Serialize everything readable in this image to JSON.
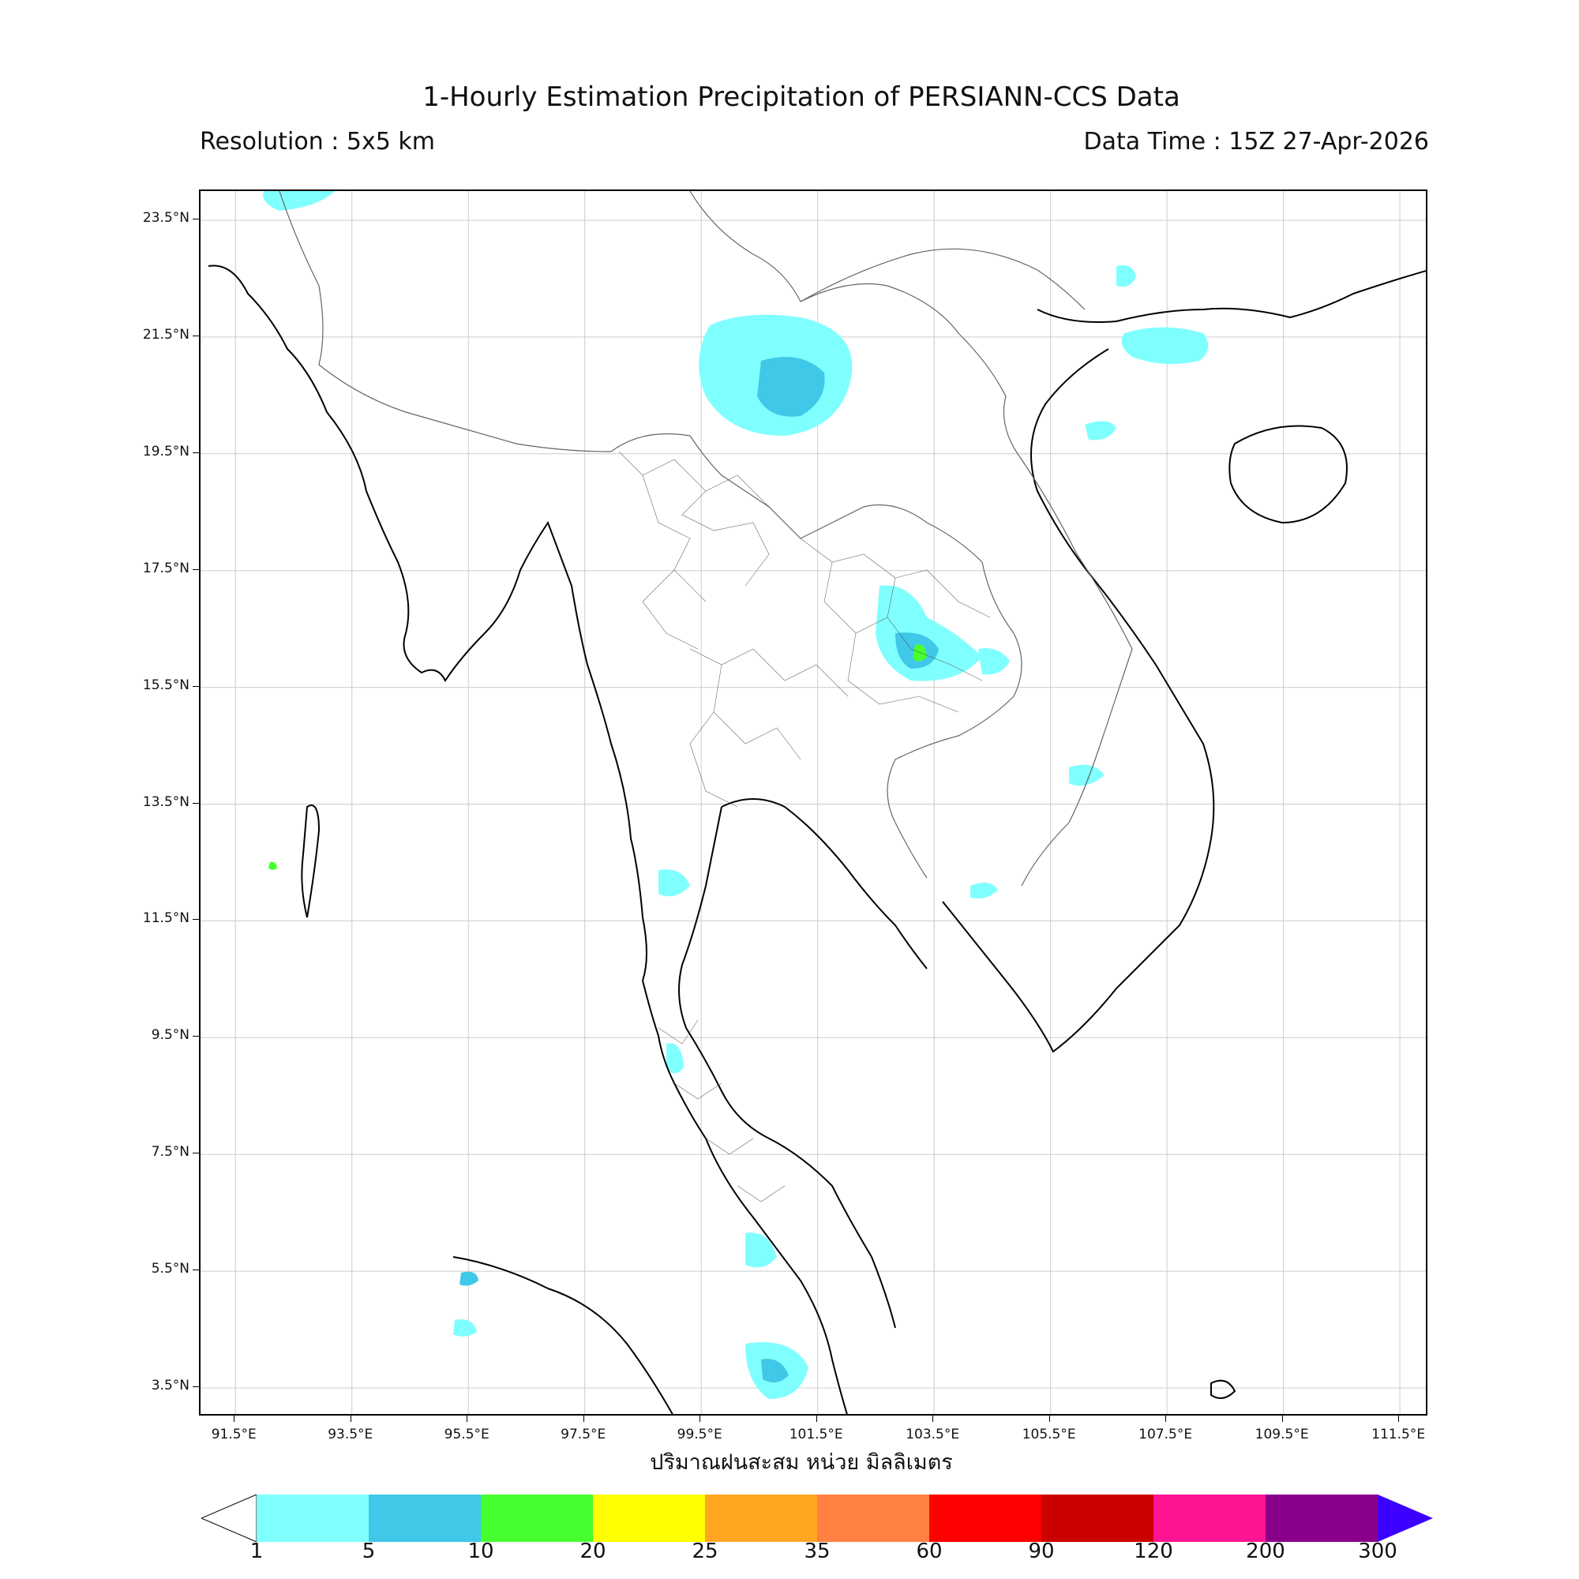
{
  "header": {
    "title": "1-Hourly Estimation Precipitation of PERSIANN-CCS Data",
    "resolution": "Resolution : 5x5 km",
    "data_time": "Data Time : 15Z 27-Apr-2026"
  },
  "axes": {
    "lat_labels": [
      "23.5°N",
      "21.5°N",
      "19.5°N",
      "17.5°N",
      "15.5°N",
      "13.5°N",
      "11.5°N",
      "9.5°N",
      "7.5°N",
      "5.5°N",
      "3.5°N"
    ],
    "lon_labels": [
      "91.5°E",
      "93.5°E",
      "95.5°E",
      "97.5°E",
      "99.5°E",
      "101.5°E",
      "103.5°E",
      "105.5°E",
      "107.5°E",
      "109.5°E",
      "111.5°E"
    ],
    "lat_range": [
      3.0,
      24.0
    ],
    "lon_range": [
      90.9,
      112.0
    ],
    "grid": true
  },
  "xlabel": "ปริมาณฝนสะสม หน่วย มิลลิเมตร",
  "colorbar": {
    "ticks": [
      "1",
      "5",
      "10",
      "20",
      "25",
      "35",
      "60",
      "90",
      "120",
      "200",
      "300"
    ],
    "colors": [
      "#80ffff",
      "#3fc8e8",
      "#46ff2e",
      "#ffff00",
      "#ffa620",
      "#ff8040",
      "#ff0000",
      "#cc0000",
      "#ff1493",
      "#8b008b"
    ],
    "under_color": "#ffffff",
    "over_color": "#3b00ff"
  },
  "colors": {
    "coastline": "#000000",
    "boundary": "#666666",
    "gridline": "#cccccc"
  }
}
